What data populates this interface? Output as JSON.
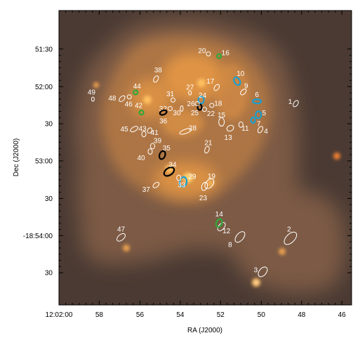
{
  "chart_data": {
    "type": "scatter",
    "xlabel": "RA (J2000)",
    "ylabel": "Dec (J2000)",
    "x_ticks": [
      {
        "value": 180.5,
        "label": "12:02:00"
      },
      {
        "value": 180.4917,
        "label": "58"
      },
      {
        "value": 180.4833,
        "label": "56"
      },
      {
        "value": 180.475,
        "label": "54"
      },
      {
        "value": 180.4667,
        "label": "52"
      },
      {
        "value": 180.4583,
        "label": "50"
      },
      {
        "value": 180.45,
        "label": "48"
      },
      {
        "value": 180.4417,
        "label": "46"
      }
    ],
    "y_ticks": [
      {
        "value": -18.8583,
        "label": "51:30"
      },
      {
        "value": -18.8667,
        "label": "52:00"
      },
      {
        "value": -18.875,
        "label": "30"
      },
      {
        "value": -18.8833,
        "label": "53:00"
      },
      {
        "value": -18.8917,
        "label": "30"
      },
      {
        "value": -18.9,
        "label": "-18:54:00"
      },
      {
        "value": -18.9083,
        "label": "30"
      }
    ],
    "xlim": [
      180.5,
      180.4397
    ],
    "ylim": [
      -18.9155,
      -18.8497
    ],
    "grid": false,
    "colors": {
      "background": "#4a3a33",
      "glow_outer": "#7b5a45",
      "glow_mid": "#b67a45",
      "glow_core": "#f0a040",
      "ellipse_white": "#ffffff",
      "ellipse_cyan": "#1a9fcf",
      "ellipse_green": "#2fa83a",
      "ellipse_black": "#000000",
      "label_text": "#ffffff"
    },
    "sources": [
      {
        "id": "1",
        "ra": 180.4512,
        "dec": -18.8705,
        "color": "white"
      },
      {
        "id": "2",
        "ra": 180.4523,
        "dec": -18.9006,
        "color": "white"
      },
      {
        "id": "3",
        "ra": 180.458,
        "dec": -18.9081,
        "color": "white"
      },
      {
        "id": "4",
        "ra": 180.4585,
        "dec": -18.8763,
        "color": "white"
      },
      {
        "id": "5",
        "ra": 180.4589,
        "dec": -18.873,
        "color": "cyan"
      },
      {
        "id": "6",
        "ra": 180.4592,
        "dec": -18.87,
        "color": "cyan"
      },
      {
        "id": "7",
        "ra": 180.46,
        "dec": -18.8742,
        "color": "cyan"
      },
      {
        "id": "8",
        "ra": 180.4627,
        "dec": -18.9003,
        "color": "white"
      },
      {
        "id": "9",
        "ra": 180.462,
        "dec": -18.8679,
        "color": "white"
      },
      {
        "id": "10",
        "ra": 180.4633,
        "dec": -18.8655,
        "color": "cyan"
      },
      {
        "id": "11",
        "ra": 180.4625,
        "dec": -18.8752,
        "color": "white"
      },
      {
        "id": "12",
        "ra": 180.4665,
        "dec": -18.898,
        "color": "white"
      },
      {
        "id": "13",
        "ra": 180.4647,
        "dec": -18.876,
        "color": "white"
      },
      {
        "id": "14",
        "ra": 180.467,
        "dec": -18.8972,
        "color": "green"
      },
      {
        "id": "15",
        "ra": 180.4665,
        "dec": -18.8746,
        "color": "white"
      },
      {
        "id": "16",
        "ra": 180.467,
        "dec": -18.8599,
        "color": "green"
      },
      {
        "id": "17",
        "ra": 180.4675,
        "dec": -18.8669,
        "color": "white"
      },
      {
        "id": "18",
        "ra": 180.4685,
        "dec": -18.8709,
        "color": "white"
      },
      {
        "id": "19",
        "ra": 180.469,
        "dec": -18.8884,
        "color": "white"
      },
      {
        "id": "20",
        "ra": 180.4692,
        "dec": -18.8594,
        "color": "white"
      },
      {
        "id": "21",
        "ra": 180.4695,
        "dec": -18.8808,
        "color": "white"
      },
      {
        "id": "22",
        "ra": 180.47,
        "dec": -18.8718,
        "color": "white"
      },
      {
        "id": "23",
        "ra": 180.47,
        "dec": -18.889,
        "color": "white"
      },
      {
        "id": "24",
        "ra": 180.4707,
        "dec": -18.8697,
        "color": "cyan"
      },
      {
        "id": "25",
        "ra": 180.471,
        "dec": -18.8713,
        "color": "black"
      },
      {
        "id": "26",
        "ra": 180.4715,
        "dec": -18.8705,
        "color": "white"
      },
      {
        "id": "27",
        "ra": 180.473,
        "dec": -18.8681,
        "color": "white"
      },
      {
        "id": "28",
        "ra": 180.4739,
        "dec": -18.8767,
        "color": "white"
      },
      {
        "id": "29",
        "ra": 180.4744,
        "dec": -18.888,
        "color": "cyan"
      },
      {
        "id": "30",
        "ra": 180.4747,
        "dec": -18.8716,
        "color": "white"
      },
      {
        "id": "31",
        "ra": 180.4765,
        "dec": -18.8697,
        "color": "white"
      },
      {
        "id": "32",
        "ra": 180.4771,
        "dec": -18.8716,
        "color": "white"
      },
      {
        "id": "33",
        "ra": 180.4753,
        "dec": -18.8871,
        "color": "white"
      },
      {
        "id": "34",
        "ra": 180.4773,
        "dec": -18.8857,
        "color": "black"
      },
      {
        "id": "35",
        "ra": 180.4787,
        "dec": -18.882,
        "color": "black"
      },
      {
        "id": "36",
        "ra": 180.4785,
        "dec": -18.8725,
        "color": "black"
      },
      {
        "id": "37",
        "ra": 180.48,
        "dec": -18.8887,
        "color": "white"
      },
      {
        "id": "38",
        "ra": 180.48,
        "dec": -18.865,
        "color": "white"
      },
      {
        "id": "39",
        "ra": 180.4807,
        "dec": -18.88,
        "color": "white"
      },
      {
        "id": "40",
        "ra": 180.4812,
        "dec": -18.8812,
        "color": "white"
      },
      {
        "id": "41",
        "ra": 180.4813,
        "dec": -18.8765,
        "color": "white"
      },
      {
        "id": "42",
        "ra": 180.483,
        "dec": -18.8725,
        "color": "green"
      },
      {
        "id": "43",
        "ra": 180.4825,
        "dec": -18.8773,
        "color": "white"
      },
      {
        "id": "44",
        "ra": 180.4842,
        "dec": -18.868,
        "color": "green"
      },
      {
        "id": "45",
        "ra": 180.4845,
        "dec": -18.8762,
        "color": "white"
      },
      {
        "id": "46",
        "ra": 180.4855,
        "dec": -18.869,
        "color": "white"
      },
      {
        "id": "47",
        "ra": 180.4872,
        "dec": -18.9004,
        "color": "white"
      },
      {
        "id": "48",
        "ra": 180.487,
        "dec": -18.8694,
        "color": "white"
      },
      {
        "id": "49",
        "ra": 180.493,
        "dec": -18.8695,
        "color": "white"
      }
    ]
  }
}
